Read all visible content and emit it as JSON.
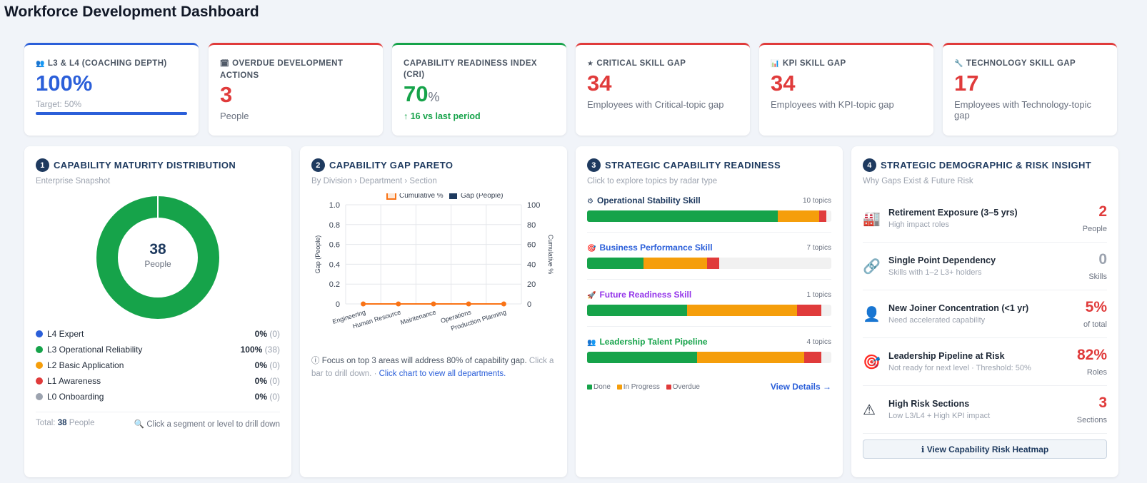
{
  "page": {
    "title": "Workforce Development Dashboard"
  },
  "colors": {
    "blue": "#2b5fd9",
    "red": "#e03b3b",
    "green": "#16a34a",
    "orange": "#f59e0b",
    "gray": "#9ca3af",
    "navy": "#1e3a5f"
  },
  "kpis": [
    {
      "icon": "people-icon",
      "icon_glyph": "👥",
      "label": "L3 & L4 (COACHING DEPTH)",
      "value": "100%",
      "sub": "Target: 50%",
      "progress": 1.0
    },
    {
      "icon": "calendar-icon",
      "icon_glyph": "🗓",
      "label": "OVERDUE DEVELOPMENT ACTIONS",
      "value": "3",
      "sub": "People"
    },
    {
      "label": "CAPABILITY READINESS INDEX (CRI)",
      "value": "70",
      "unit": "%",
      "delta": "↑ 16 vs last period"
    },
    {
      "icon": "star-icon",
      "icon_glyph": "★",
      "label": "CRITICAL SKILL GAP",
      "value": "34",
      "sub": "Employees with Critical-topic gap"
    },
    {
      "icon": "bar-chart-icon",
      "icon_glyph": "📊",
      "label": "KPI SKILL GAP",
      "value": "34",
      "sub": "Employees with KPI-topic gap"
    },
    {
      "icon": "wrench-icon",
      "icon_glyph": "🔧",
      "label": "TECHNOLOGY SKILL GAP",
      "value": "17",
      "sub": "Employees with Technology-topic gap"
    }
  ],
  "maturity": {
    "num": "1",
    "title": "CAPABILITY MATURITY DISTRIBUTION",
    "subtitle": "Enterprise Snapshot",
    "center_value": "38",
    "center_label": "People",
    "levels": [
      {
        "name": "L4 Expert",
        "pct": "0%",
        "count": "(0)",
        "color": "#2b5fd9"
      },
      {
        "name": "L3 Operational Reliability",
        "pct": "100%",
        "count": "(38)",
        "color": "#16a34a"
      },
      {
        "name": "L2 Basic Application",
        "pct": "0%",
        "count": "(0)",
        "color": "#f59e0b"
      },
      {
        "name": "L1 Awareness",
        "pct": "0%",
        "count": "(0)",
        "color": "#e03b3b"
      },
      {
        "name": "L0 Onboarding",
        "pct": "0%",
        "count": "(0)",
        "color": "#9ca3af"
      }
    ],
    "total_label": "Total:",
    "total_value": "38",
    "total_unit": "People",
    "hint": "🔍 Click a segment or level to drill down"
  },
  "pareto": {
    "num": "2",
    "title": "CAPABILITY GAP PARETO",
    "subtitle": "By Division › Department › Section",
    "note": "ⓘ Focus on top 3 areas will address 80% of capability gap.",
    "note_muted": "Click a bar to drill down. ·",
    "note_link": "Click chart to view all departments."
  },
  "chart_data": {
    "type": "bar",
    "categories": [
      "Engineering",
      "Human Resource",
      "Maintenance",
      "Operations",
      "Production Planning"
    ],
    "series": [
      {
        "name": "Gap (People)",
        "values": [
          0,
          0,
          0,
          0,
          0
        ],
        "color": "#1e3a5f"
      },
      {
        "name": "Cumulative %",
        "values": [
          0,
          0,
          0,
          0,
          0
        ],
        "color": "#f97316",
        "type": "line"
      }
    ],
    "ylabel": "Gap (People)",
    "y2label": "Cumulative %",
    "ylim": [
      0,
      1.0
    ],
    "y2lim": [
      0,
      100
    ],
    "yticks": [
      "0",
      "0.2",
      "0.4",
      "0.6",
      "0.8",
      "1.0"
    ],
    "y2ticks": [
      "0",
      "20",
      "40",
      "60",
      "80",
      "100"
    ],
    "grid": true,
    "legend": "top"
  },
  "readiness": {
    "num": "3",
    "title": "STRATEGIC CAPABILITY READINESS",
    "subtitle": "Click to explore topics by radar type",
    "skills": [
      {
        "icon": "gear-icon",
        "icon_glyph": "⚙",
        "name": "Operational Stability Skill",
        "topics": "10 topics",
        "color": "#1e3a5f",
        "done": 0.78,
        "progress": 0.17,
        "overdue": 0.03
      },
      {
        "icon": "target-icon",
        "icon_glyph": "🎯",
        "name": "Business Performance Skill",
        "topics": "7 topics",
        "color": "#2b5fd9",
        "done": 0.23,
        "progress": 0.26,
        "overdue": 0.05
      },
      {
        "icon": "rocket-icon",
        "icon_glyph": "🚀",
        "name": "Future Readiness Skill",
        "topics": "1 topics",
        "color": "#9333ea",
        "done": 0.41,
        "progress": 0.45,
        "overdue": 0.1
      },
      {
        "icon": "people-icon",
        "icon_glyph": "👥",
        "name": "Leadership Talent Pipeline",
        "topics": "4 topics",
        "color": "#16a34a",
        "done": 0.45,
        "progress": 0.44,
        "overdue": 0.07
      }
    ],
    "legend": [
      "Done",
      "In Progress",
      "Overdue"
    ],
    "view_details": "View Details →"
  },
  "risk": {
    "num": "4",
    "title": "STRATEGIC DEMOGRAPHIC & RISK INSIGHT",
    "subtitle": "Why Gaps Exist & Future Risk",
    "rows": [
      {
        "icon": "factory-icon",
        "icon_glyph": "🏭",
        "title": "Retirement Exposure (3–5 yrs)",
        "desc": "High impact roles",
        "value": "2",
        "unit": "People",
        "color": "#e03b3b"
      },
      {
        "icon": "link-icon",
        "icon_glyph": "🔗",
        "title": "Single Point Dependency",
        "desc": "Skills with 1–2 L3+ holders",
        "value": "0",
        "unit": "Skills",
        "color": "#9ca3af"
      },
      {
        "icon": "person-icon",
        "icon_glyph": "👤",
        "title": "New Joiner Concentration (<1 yr)",
        "desc": "Need accelerated capability",
        "value": "5%",
        "unit": "of total",
        "color": "#e03b3b"
      },
      {
        "icon": "target-icon",
        "icon_glyph": "🎯",
        "title": "Leadership Pipeline at Risk",
        "desc": "Not ready for next level · Threshold: 50%",
        "value": "82%",
        "unit": "Roles",
        "color": "#e03b3b"
      },
      {
        "icon": "warning-icon",
        "icon_glyph": "⚠",
        "title": "High Risk Sections",
        "desc": "Low L3/L4 + High KPI impact",
        "value": "3",
        "unit": "Sections",
        "color": "#e03b3b"
      }
    ],
    "button": "ℹ View Capability Risk Heatmap"
  }
}
